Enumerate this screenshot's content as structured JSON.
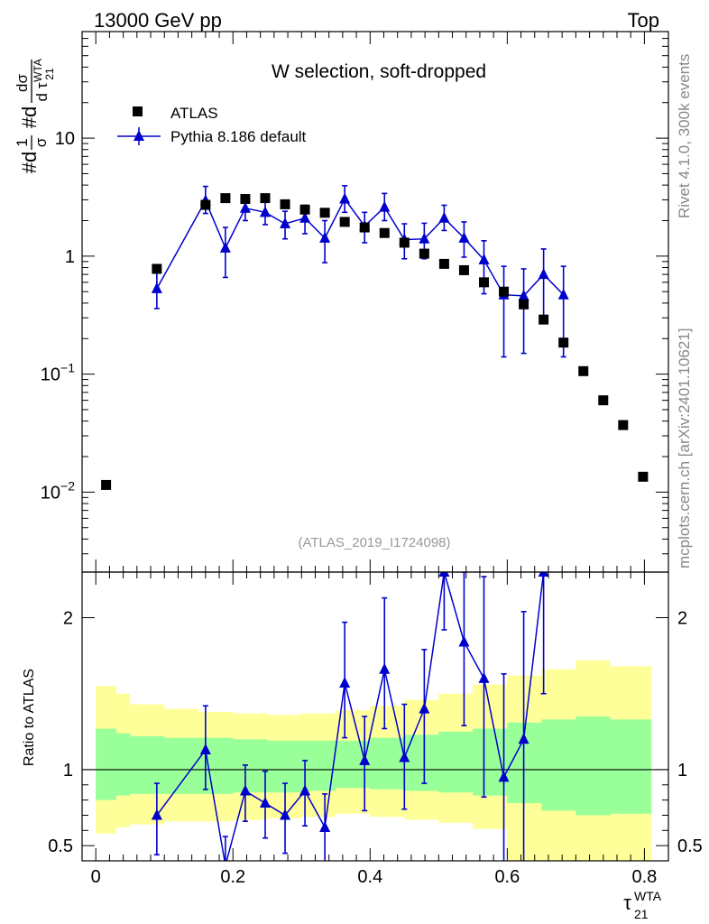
{
  "header": {
    "left": "13000 GeV pp",
    "right": "Top"
  },
  "side_texts": {
    "rivet": "Rivet 4.1.0,  300k events",
    "mcplots": "mcplots.cern.ch [arXiv:2401.10621]"
  },
  "colors": {
    "atlas": "#000000",
    "pythia": "#0000cc",
    "band_inner": "#99ff99",
    "band_outer": "#ffff99",
    "reference_label": "#999999"
  },
  "chart_data": [
    {
      "type": "scatter",
      "panel": "main",
      "title": "W selection, soft-dropped",
      "analysis_label": "(ATLAS_2019_I1724098)",
      "ylabel": "#d1/σ #d dσ/d τ21WTA",
      "ylabel_parts": {
        "pre": "#d",
        "frac1_num": "1",
        "frac1_den": "σ",
        "mid": "#d",
        "frac2_num": "dσ",
        "frac2_den": "d τ",
        "sup": "WTA",
        "sub": "21"
      },
      "xlim": [
        -0.02,
        0.835
      ],
      "ylim": [
        0.0021,
        80
      ],
      "yscale": "log",
      "yticks": [
        {
          "value": 0.01,
          "base": "10",
          "exp": "−2"
        },
        {
          "value": 0.1,
          "base": "10",
          "exp": "−1"
        },
        {
          "value": 1,
          "base": "1",
          "exp": ""
        },
        {
          "value": 10,
          "base": "10",
          "exp": ""
        }
      ],
      "legend_position": "top-left",
      "series": [
        {
          "name": "ATLAS",
          "marker": "square",
          "x": [
            0.015,
            0.089,
            0.16,
            0.189,
            0.218,
            0.247,
            0.276,
            0.305,
            0.334,
            0.363,
            0.392,
            0.421,
            0.45,
            0.479,
            0.508,
            0.537,
            0.566,
            0.595,
            0.624,
            0.653,
            0.682,
            0.711,
            0.74,
            0.769,
            0.798
          ],
          "y": [
            0.0115,
            0.78,
            2.72,
            3.1,
            3.05,
            3.1,
            2.75,
            2.48,
            2.33,
            1.95,
            1.75,
            1.57,
            1.3,
            1.05,
            0.86,
            0.76,
            0.6,
            0.5,
            0.39,
            0.29,
            0.185,
            0.106,
            0.06,
            0.037,
            0.0135
          ]
        },
        {
          "name": "Pythia 8.186 default",
          "marker": "triangle",
          "x": [
            0.089,
            0.16,
            0.189,
            0.218,
            0.247,
            0.276,
            0.305,
            0.334,
            0.363,
            0.392,
            0.421,
            0.45,
            0.479,
            0.508,
            0.537,
            0.566,
            0.595,
            0.624,
            0.653,
            0.682
          ],
          "y": [
            0.53,
            2.95,
            1.17,
            2.55,
            2.35,
            1.88,
            2.1,
            1.42,
            3.05,
            1.8,
            2.6,
            1.38,
            1.4,
            2.1,
            1.42,
            0.93,
            0.47,
            0.46,
            0.7,
            0.47
          ],
          "ylow": [
            0.36,
            2.3,
            0.66,
            2.0,
            1.85,
            1.4,
            1.55,
            0.88,
            2.35,
            1.3,
            2.0,
            0.95,
            0.95,
            1.65,
            0.98,
            0.48,
            0.14,
            0.15,
            0.28,
            0.14
          ],
          "yhigh": [
            0.72,
            3.9,
            1.75,
            3.15,
            2.95,
            2.4,
            2.7,
            2.0,
            3.95,
            2.35,
            3.4,
            1.88,
            1.9,
            2.7,
            1.95,
            1.35,
            0.82,
            0.78,
            1.15,
            0.82
          ]
        }
      ]
    },
    {
      "type": "scatter",
      "panel": "ratio",
      "title": "",
      "xlabel": "τ21WTA",
      "xlabel_parts": {
        "base": "τ",
        "sup": "WTA",
        "sub": "21"
      },
      "ylabel": "Ratio to ATLAS",
      "xlim": [
        -0.02,
        0.835
      ],
      "ylim": [
        0.4,
        2.3
      ],
      "xticks": [
        0,
        0.2,
        0.4,
        0.6,
        0.8
      ],
      "xtick_labels": [
        "0",
        "0.2",
        "0.4",
        "0.6",
        "0.8"
      ],
      "yticks": [
        0.5,
        1,
        2
      ],
      "ytick_labels": [
        "0.5",
        "1",
        "2"
      ],
      "reference_line": 1,
      "band_edges": [
        0.0,
        0.03,
        0.05,
        0.1,
        0.15,
        0.2,
        0.25,
        0.3,
        0.35,
        0.4,
        0.45,
        0.5,
        0.55,
        0.6,
        0.65,
        0.7,
        0.75,
        0.81
      ],
      "inner_band_low": [
        0.8,
        0.83,
        0.84,
        0.84,
        0.84,
        0.85,
        0.85,
        0.86,
        0.88,
        0.87,
        0.86,
        0.85,
        0.83,
        0.78,
        0.73,
        0.7,
        0.71
      ],
      "inner_band_high": [
        1.27,
        1.24,
        1.22,
        1.21,
        1.21,
        1.2,
        1.19,
        1.19,
        1.19,
        1.21,
        1.23,
        1.25,
        1.27,
        1.31,
        1.33,
        1.35,
        1.33
      ],
      "outer_band_low": [
        0.58,
        0.62,
        0.64,
        0.66,
        0.66,
        0.67,
        0.68,
        0.69,
        0.71,
        0.69,
        0.67,
        0.65,
        0.61,
        0.4,
        0.4,
        0.4,
        0.4
      ],
      "outer_band_high": [
        1.55,
        1.5,
        1.43,
        1.4,
        1.38,
        1.37,
        1.36,
        1.37,
        1.39,
        1.42,
        1.46,
        1.5,
        1.56,
        1.62,
        1.66,
        1.72,
        1.68
      ],
      "series": [
        {
          "name": "Pythia 8.186 default / ATLAS",
          "marker": "triangle",
          "x": [
            0.089,
            0.16,
            0.189,
            0.218,
            0.247,
            0.276,
            0.305,
            0.334,
            0.363,
            0.392,
            0.421,
            0.45,
            0.479,
            0.508,
            0.537,
            0.566,
            0.595,
            0.624,
            0.653
          ],
          "y": [
            0.7,
            1.13,
            0.37,
            0.86,
            0.78,
            0.7,
            0.86,
            0.62,
            1.57,
            1.06,
            1.66,
            1.08,
            1.4,
            2.3,
            1.84,
            1.6,
            0.95,
            1.2,
            2.3
          ],
          "ylow": [
            0.44,
            0.87,
            0.37,
            0.66,
            0.55,
            0.45,
            0.63,
            0.38,
            1.21,
            0.73,
            1.27,
            0.74,
            0.91,
            1.92,
            1.29,
            0.82,
            0.37,
            0.37,
            1.5
          ],
          "yhigh": [
            0.91,
            1.42,
            0.56,
            1.03,
            0.99,
            0.91,
            1.06,
            0.84,
            1.97,
            1.35,
            2.13,
            1.43,
            1.79,
            2.3,
            2.3,
            2.27,
            1.63,
            2.04,
            2.3
          ]
        }
      ]
    }
  ]
}
